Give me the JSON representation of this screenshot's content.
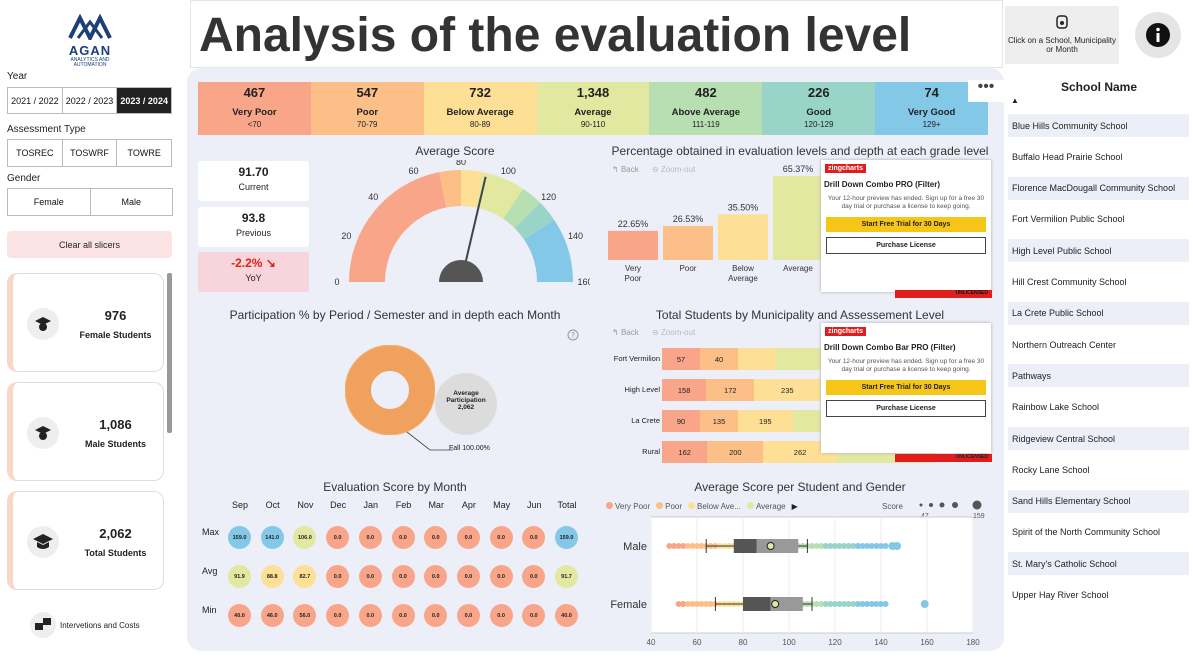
{
  "logo": {
    "name": "AGAN",
    "sub": "ANALYTICS AND AUTOMATION"
  },
  "filters": {
    "year_label": "Year",
    "years": [
      "2021 / 2022",
      "2022 / 2023",
      "2023 / 2024"
    ],
    "assess_label": "Assessment Type",
    "assess": [
      "TOSREC",
      "TOSWRF",
      "TOWRE"
    ],
    "gender_label": "Gender",
    "genders": [
      "Female",
      "Male"
    ],
    "clear": "Clear all slicers"
  },
  "stats": [
    {
      "num": "976",
      "cap": "Female Students"
    },
    {
      "num": "1,086",
      "cap": "Male Students"
    },
    {
      "num": "2,062",
      "cap": "Total Students"
    }
  ],
  "interventions": "Intervetions and Costs",
  "title": "Analysis of the evaluation level",
  "hint": "Click on a School, Municipality or Month",
  "kpis": [
    {
      "v": "467",
      "n": "Very Poor",
      "r": "<70",
      "c": "#f8a58a"
    },
    {
      "v": "547",
      "n": "Poor",
      "r": "70-79",
      "c": "#fbbf87"
    },
    {
      "v": "732",
      "n": "Below Average",
      "r": "80-89",
      "c": "#fde095"
    },
    {
      "v": "1,348",
      "n": "Average",
      "r": "90-110",
      "c": "#e3e8a0"
    },
    {
      "v": "482",
      "n": "Above Average",
      "r": "111-119",
      "c": "#b7dfb1"
    },
    {
      "v": "226",
      "n": "Good",
      "r": "120-129",
      "c": "#98d5c8"
    },
    {
      "v": "74",
      "n": "Very Good",
      "r": "129+",
      "c": "#83c8e6"
    }
  ],
  "avg_score": {
    "title": "Average Score",
    "current": "91.70",
    "current_l": "Current",
    "previous": "93.8",
    "previous_l": "Previous",
    "yoy": "-2.2% ↘",
    "yoy_l": "YoY",
    "ticks": [
      "0",
      "20",
      "40",
      "60",
      "80",
      "100",
      "120",
      "140",
      "160"
    ],
    "value": 91.7
  },
  "pct_levels": {
    "title": "Percentage obtained in evaluation levels and depth at each grade level",
    "back": "Back",
    "zoom": "Zoom-out",
    "bars": [
      {
        "l": "Very Poor",
        "v": 22.65,
        "t": "22.65%"
      },
      {
        "l": "Poor",
        "v": 26.53,
        "t": "26.53%"
      },
      {
        "l": "Below Average",
        "v": 35.5,
        "t": "35.50%"
      },
      {
        "l": "Average",
        "v": 65.37,
        "t": "65.37%"
      }
    ]
  },
  "zing1": {
    "brand": "zingcharts",
    "h": "Drill Down Combo PRO (Filter)",
    "p": "Your 12-hour preview has ended. Sign up for a free 30 day trial or purchase a license to keep going.",
    "b1": "Start Free Trial for 30 Days",
    "b2": "Purchase License",
    "unl": "UNLICENSED"
  },
  "zing2": {
    "brand": "zingcharts",
    "h": "Drill Down Combo Bar PRO (Filter)",
    "p": "Your 12-hour preview has ended. Sign up for a free 30 day trial or purchase a license to keep going.",
    "b1": "Start Free Trial for 30 Days",
    "b2": "Purchase License",
    "unl": "UNLICENSED"
  },
  "participation": {
    "title": "Participation % by Period / Semester and in depth each Month",
    "avg_l": "Average Participation",
    "avg": "2,062",
    "fall": "Fall 100.00%"
  },
  "muni": {
    "title": "Total Students by Municipality and Assessement Level",
    "back": "Back",
    "zoom": "Zoom-out",
    "rows": [
      {
        "n": "Fort Vermilion",
        "v": [
          "57",
          "40",
          ""
        ]
      },
      {
        "n": "High Level",
        "v": [
          "158",
          "172",
          "235"
        ]
      },
      {
        "n": "La Crete",
        "v": [
          "90",
          "135",
          "195"
        ]
      },
      {
        "n": "Rural",
        "v": [
          "162",
          "200",
          "262"
        ]
      }
    ]
  },
  "eval_month": {
    "title": "Evaluation Score by Month",
    "months": [
      "Sep",
      "Oct",
      "Nov",
      "Dec",
      "Jan",
      "Feb",
      "Mar",
      "Apr",
      "May",
      "Jun",
      "Total"
    ],
    "rows": [
      {
        "l": "Max",
        "v": [
          "159.0",
          "141.0",
          "106.0",
          "0.0",
          "0.0",
          "0.0",
          "0.0",
          "0.0",
          "0.0",
          "0.0",
          "159.0"
        ]
      },
      {
        "l": "Avg",
        "v": [
          "91.9",
          "88.8",
          "82.7",
          "0.0",
          "0.0",
          "0.0",
          "0.0",
          "0.0",
          "0.0",
          "0.0",
          "91.7"
        ]
      },
      {
        "l": "Min",
        "v": [
          "40.0",
          "46.0",
          "56.0",
          "0.0",
          "0.0",
          "0.0",
          "0.0",
          "0.0",
          "0.0",
          "0.0",
          "40.0"
        ]
      }
    ]
  },
  "gender_score": {
    "title": "Average Score per Student and Gender",
    "legend": [
      "Very Poor",
      "Poor",
      "Below Ave...",
      "Average"
    ],
    "score_l": "Score",
    "smin": "47",
    "smax": "159",
    "cats": [
      "Male",
      "Female"
    ],
    "ticks": [
      "40",
      "60",
      "80",
      "100",
      "120",
      "140",
      "160",
      "180"
    ]
  },
  "schools": {
    "header": "School Name",
    "items": [
      "Blue Hills Community School",
      "Buffalo Head Prairie School",
      "Florence MacDougall Community School",
      "Fort Vermilion Public School",
      "High Level Public School",
      "Hill Crest Community School",
      "La Crete Public School",
      "Northern Outreach Center",
      "Pathways",
      "Rainbow Lake School",
      "Ridgeview Central School",
      "Rocky Lane School",
      "Sand Hills Elementary School",
      "Spirit of the North Community School",
      "St. Mary's Catholic School",
      "Upper Hay River School"
    ]
  }
}
